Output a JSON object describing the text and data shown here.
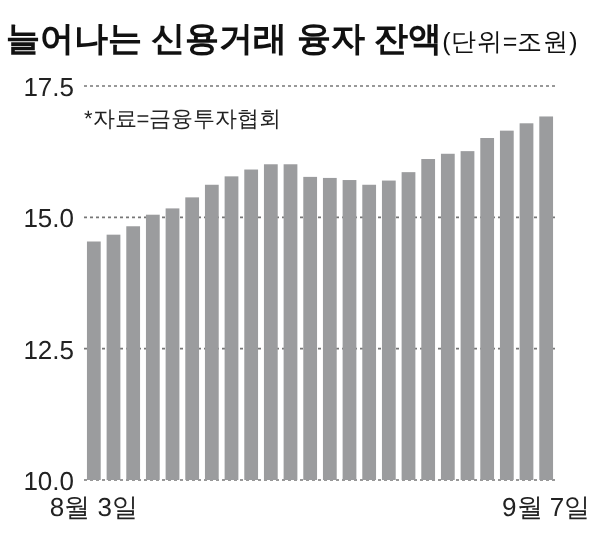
{
  "chart_data": {
    "type": "bar",
    "title": "늘어나는 신용거래 융자 잔액",
    "subtitle": "(단위=조원)",
    "annotations": [
      "*자료=금융투자협회"
    ],
    "categories": [
      "8월 3일",
      null,
      null,
      null,
      null,
      null,
      null,
      null,
      null,
      null,
      null,
      null,
      null,
      null,
      null,
      null,
      null,
      null,
      null,
      null,
      null,
      null,
      null,
      "9월 7일"
    ],
    "values": [
      14.54,
      14.67,
      14.83,
      15.05,
      15.17,
      15.38,
      15.62,
      15.78,
      15.91,
      16.01,
      16.01,
      15.77,
      15.75,
      15.71,
      15.62,
      15.7,
      15.86,
      16.11,
      16.21,
      16.26,
      16.51,
      16.65,
      16.79,
      16.92
    ],
    "color": "#9b9c9e",
    "ylim": [
      10,
      17.5
    ],
    "yticks": [
      {
        "value": 10,
        "label": "10.0"
      },
      {
        "value": 12.5,
        "label": "12.5"
      },
      {
        "value": 15,
        "label": "15.0"
      },
      {
        "value": 17.5,
        "label": "17.5"
      }
    ],
    "grid": "y",
    "line_style": "dotted"
  }
}
